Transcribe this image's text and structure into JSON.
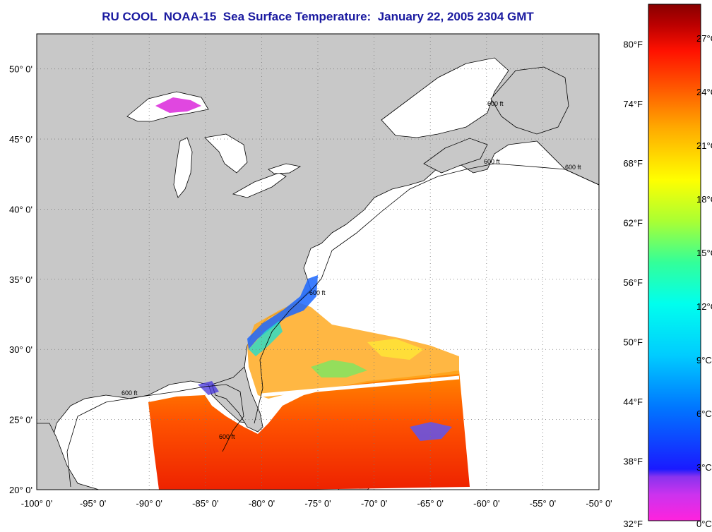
{
  "title": "RU COOL  NOAA-15  Sea Surface Temperature:  January 22, 2005 2304 GMT",
  "map": {
    "lon_range": [
      -100,
      -50
    ],
    "lat_range": [
      20,
      52.5
    ],
    "x_ticks": [
      "-100° 0'",
      "-95° 0'",
      "-90° 0'",
      "-85° 0'",
      "-80° 0'",
      "-75° 0'",
      "-70° 0'",
      "-65° 0'",
      "-60° 0'",
      "-55° 0'",
      "-50° 0'"
    ],
    "y_ticks": [
      "20° 0'",
      "25° 0'",
      "30° 0'",
      "35° 0'",
      "40° 0'",
      "45° 0'",
      "50° 0'"
    ],
    "grid": "dotted",
    "colors": {
      "land": "#c8c8c8",
      "water": "#ffffff",
      "coastline": "#000000"
    },
    "contour_labels": [
      "600 ft",
      "600 ft",
      "600 ft",
      "600 ft",
      "600 ft",
      "600 ft"
    ]
  },
  "colorbar": {
    "fahrenheit_labels": [
      "80°F",
      "74°F",
      "68°F",
      "62°F",
      "56°F",
      "50°F",
      "44°F",
      "38°F",
      "32°F"
    ],
    "celsius_labels": [
      "27°C",
      "24°C",
      "21°C",
      "18°C",
      "15°C",
      "12°C",
      "9°C",
      "6°C",
      "3°C",
      "0°C"
    ],
    "gradient_stops": [
      "#ff22dd",
      "#9a33ee",
      "#1a1aff",
      "#00aaff",
      "#00ffee",
      "#33ff99",
      "#aaff33",
      "#ffff00",
      "#ffaa00",
      "#ff5500",
      "#ff1100",
      "#bb0000",
      "#880000"
    ]
  }
}
